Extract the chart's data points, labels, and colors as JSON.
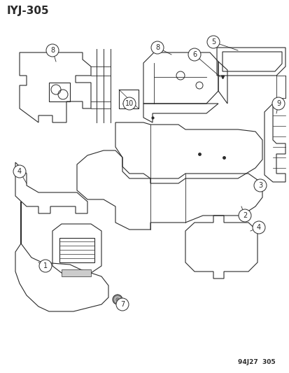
{
  "title": "IYJ-305",
  "footer": "94J27  305",
  "bg_color": "#ffffff",
  "line_color": "#2a2a2a",
  "title_fontsize": 11,
  "footer_fontsize": 6.5,
  "callout_r": 0.018
}
